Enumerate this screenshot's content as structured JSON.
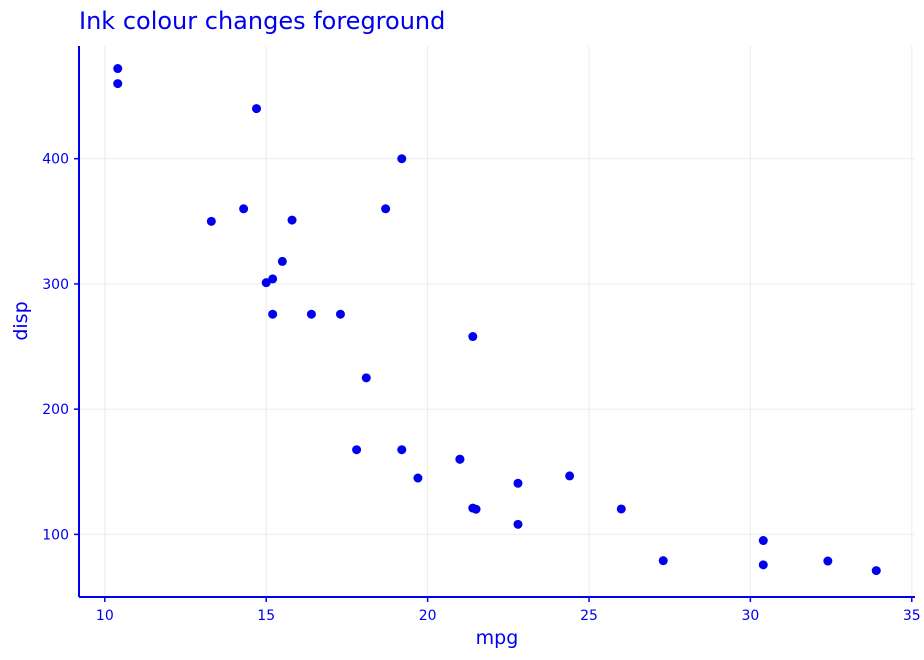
{
  "chart_data": {
    "type": "scatter",
    "title": "Ink colour changes foreground",
    "xlabel": "mpg",
    "ylabel": "disp",
    "xlim": [
      9.2,
      35.1
    ],
    "ylim": [
      50,
      490
    ],
    "x_ticks": [
      10,
      15,
      20,
      25,
      30,
      35
    ],
    "y_ticks": [
      100,
      200,
      300,
      400
    ],
    "grid": true,
    "legend": "none",
    "ink_color": "#0000ee",
    "grid_color": "#ebebeb",
    "points": [
      {
        "x": 21.0,
        "y": 160
      },
      {
        "x": 21.0,
        "y": 160
      },
      {
        "x": 22.8,
        "y": 108
      },
      {
        "x": 21.4,
        "y": 258
      },
      {
        "x": 18.7,
        "y": 360
      },
      {
        "x": 18.1,
        "y": 225
      },
      {
        "x": 14.3,
        "y": 360
      },
      {
        "x": 24.4,
        "y": 146.7
      },
      {
        "x": 22.8,
        "y": 140.8
      },
      {
        "x": 19.2,
        "y": 167.6
      },
      {
        "x": 17.8,
        "y": 167.6
      },
      {
        "x": 16.4,
        "y": 275.8
      },
      {
        "x": 17.3,
        "y": 275.8
      },
      {
        "x": 15.2,
        "y": 275.8
      },
      {
        "x": 10.4,
        "y": 472
      },
      {
        "x": 10.4,
        "y": 460
      },
      {
        "x": 14.7,
        "y": 440
      },
      {
        "x": 32.4,
        "y": 78.7
      },
      {
        "x": 30.4,
        "y": 75.7
      },
      {
        "x": 33.9,
        "y": 71.1
      },
      {
        "x": 21.5,
        "y": 120.1
      },
      {
        "x": 15.5,
        "y": 318
      },
      {
        "x": 15.2,
        "y": 304
      },
      {
        "x": 13.3,
        "y": 350
      },
      {
        "x": 19.2,
        "y": 400
      },
      {
        "x": 27.3,
        "y": 79
      },
      {
        "x": 26.0,
        "y": 120.3
      },
      {
        "x": 30.4,
        "y": 95.1
      },
      {
        "x": 15.8,
        "y": 351
      },
      {
        "x": 19.7,
        "y": 145
      },
      {
        "x": 15.0,
        "y": 301
      },
      {
        "x": 21.4,
        "y": 121
      }
    ]
  }
}
